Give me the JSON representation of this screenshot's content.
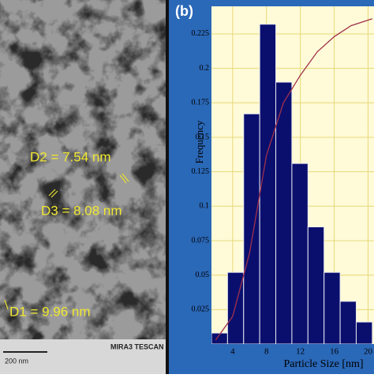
{
  "image": {
    "annotations": [
      "D2 = 7.54 nm",
      "D3 = 8.08 nm",
      "D1 = 9.96 nm"
    ],
    "scale_bar": "200 nm",
    "instrument": "MIRA3 TESCAN"
  },
  "chart_data": {
    "type": "histogram",
    "panel_label": "(b)",
    "x_label": "Particle Size [nm]",
    "y_label": "Frequency",
    "bins": [
      1.5,
      3.4,
      5.3,
      7.2,
      9.1,
      11.0,
      12.9,
      14.8,
      16.7,
      18.6,
      20.5
    ],
    "values": [
      0.008,
      0.052,
      0.167,
      0.232,
      0.19,
      0.131,
      0.085,
      0.052,
      0.031,
      0.016
    ],
    "color": "#0a0f6e",
    "curve": {
      "x": [
        2,
        4,
        6,
        8,
        10,
        12,
        14,
        16,
        18,
        20.5
      ],
      "values": [
        0.003,
        0.02,
        0.066,
        0.137,
        0.175,
        0.195,
        0.212,
        0.223,
        0.231,
        0.236
      ],
      "color": "#a0304a"
    },
    "xlim": [
      1.5,
      20.7
    ],
    "ylim": [
      0,
      0.245
    ],
    "xticks": [
      4,
      8,
      12,
      16,
      20
    ],
    "yticks": [
      0.025,
      0.05,
      0.075,
      0.1,
      0.125,
      0.15,
      0.175,
      0.2,
      0.225
    ],
    "grid": true
  }
}
